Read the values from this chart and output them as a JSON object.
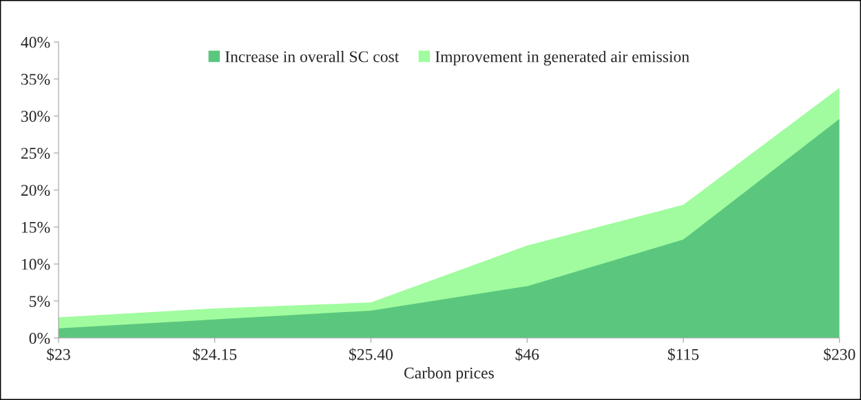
{
  "chart_data": {
    "type": "area",
    "categories": [
      "$23",
      "$24.15",
      "$25.40",
      "$46",
      "$115",
      "$230"
    ],
    "xlabel": "Carbon prices",
    "series": [
      {
        "name": "Increase in overall SC cost",
        "color": "#5bc77e",
        "values": [
          1.3,
          2.5,
          3.7,
          7.0,
          13.3,
          29.6
        ]
      },
      {
        "name": "Improvement in generated air emission",
        "color": "#a0fc9e",
        "values": [
          2.8,
          4.0,
          4.8,
          12.5,
          18.0,
          33.8
        ]
      }
    ],
    "ylim": [
      0,
      40
    ],
    "yticks": [
      {
        "value": 0,
        "label": "0%"
      },
      {
        "value": 5,
        "label": "5%"
      },
      {
        "value": 10,
        "label": "10%"
      },
      {
        "value": 15,
        "label": "15%"
      },
      {
        "value": 20,
        "label": "20%"
      },
      {
        "value": 25,
        "label": "25%"
      },
      {
        "value": 30,
        "label": "30%"
      },
      {
        "value": 35,
        "label": "35%"
      },
      {
        "value": 40,
        "label": "40%"
      }
    ],
    "grid": false,
    "legend": "top"
  }
}
